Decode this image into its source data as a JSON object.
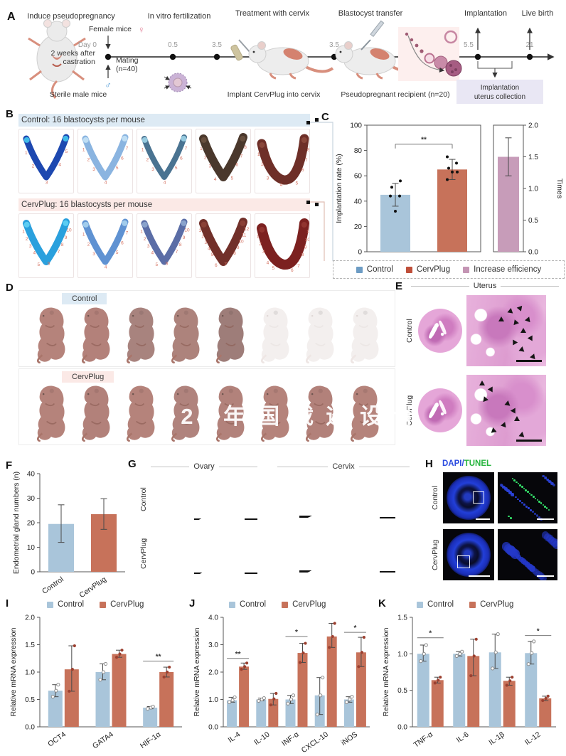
{
  "colors": {
    "control_bar": "#a9c5da",
    "cervplug_bar": "#c7725a",
    "increase_bar": "#c79cb9",
    "legend_control": "#6d9cc4",
    "legend_cervplug": "#bf4f3a",
    "legend_increase": "#c495b4",
    "site_number": "#d4705f",
    "header_blue": "#ddeaf4",
    "header_pink": "#fbe9e6"
  },
  "watermark": "02 年国截遥设计",
  "panels": {
    "A": {
      "label": "A",
      "step1": "Induce pseudopregnancy",
      "step2": "In vitro fertilization",
      "step3": "Treatment with cervix",
      "step4": "Blastocyst transfer",
      "step5": "Implantation",
      "step6": "Live birth",
      "female_mice": "Female mice",
      "female_symbol": "♀",
      "male_symbol": "♂",
      "castration_l1": "2 weeks after",
      "castration_l2": "castration",
      "sterile": "Sterile male mice",
      "day0": "Day 0",
      "mating_l1": "Mating",
      "mating_l2": "(n=40)",
      "t05": "0.5",
      "t35a": "3.5",
      "t35b": "3.5",
      "t55": "5.5",
      "t21": "21",
      "implant": "Implant CervPlug into cervix",
      "recipient": "Pseudopregnant recipient (n=20)",
      "collection_l1": "Implantation",
      "collection_l2": "uterus collection"
    },
    "B": {
      "label": "B",
      "groups": [
        {
          "title": "Control: 16 blastocysts per mouse",
          "header_bg": "#ddeaf4",
          "tiles": [
            {
              "color": "#1d48b0",
              "tip": "#45c8f0",
              "sites": 5,
              "shape": "v",
              "w": 9
            },
            {
              "color": "#8ab4e0",
              "tip": "#c4e2f6",
              "sites": 7,
              "shape": "v",
              "w": 9
            },
            {
              "color": "#4a7391",
              "tip": "#9fd4e8",
              "sites": 7,
              "shape": "v",
              "w": 8
            },
            {
              "color": "#4a382c",
              "tip": "#6a5240",
              "sites": 8,
              "shape": "v",
              "w": 12
            },
            {
              "color": "#6e2f28",
              "tip": "#8c4a3c",
              "sites": 8,
              "shape": "curve",
              "w": 13
            }
          ]
        },
        {
          "title": "CervPlug: 16 blastocysts per mouse",
          "header_bg": "#fbe9e6",
          "tiles": [
            {
              "color": "#2aa0dd",
              "tip": "#62d2f5",
              "sites": 10,
              "shape": "v",
              "w": 10
            },
            {
              "color": "#5f92d2",
              "tip": "#a8d3ee",
              "sites": 7,
              "shape": "v",
              "w": 9
            },
            {
              "color": "#5b6da6",
              "tip": "#8fa8d0",
              "sites": 10,
              "shape": "v",
              "w": 9
            },
            {
              "color": "#72302a",
              "tip": "#8d4438",
              "sites": 12,
              "shape": "v",
              "w": 12
            },
            {
              "color": "#7c2120",
              "tip": "#933631",
              "sites": 11,
              "shape": "curve",
              "w": 14
            }
          ]
        }
      ]
    },
    "C": {
      "label": "C",
      "legend": [
        {
          "label": "Control",
          "color": "#6d9cc4"
        },
        {
          "label": "CervPlug",
          "color": "#bf4f3a"
        },
        {
          "label": "Increase efficiency",
          "color": "#c495b4"
        }
      ]
    },
    "D": {
      "label": "D",
      "rows": [
        {
          "chip": "Control",
          "chip_bg": "#ddeaf4",
          "pups": [
            "#b5837b",
            "#b3817a",
            "#a8837e",
            "#ad837c",
            "#9e7d79",
            "#f3efee",
            "#f3efee",
            "#f3efee"
          ]
        },
        {
          "chip": "CervPlug",
          "chip_bg": "#fbe9e6",
          "pups": [
            "#b5837b",
            "#b2817a",
            "#b5837b",
            "#b0837d",
            "#b2827b",
            "#b5837b",
            "#b2817a",
            "#b5837b"
          ]
        }
      ]
    },
    "E": {
      "label": "E",
      "title": "Uterus",
      "rows": [
        "Control",
        "CervPlug"
      ]
    },
    "F": {
      "label": "F"
    },
    "G": {
      "label": "G",
      "ovary": "Ovary",
      "cervix": "Cervix",
      "rows": [
        "Control",
        "CervPlug"
      ]
    },
    "H": {
      "label": "H",
      "dapi": "DAPI",
      "slash": "/",
      "tunel": "TUNEL",
      "dapi_color": "#2b4be0",
      "tunel_color": "#27b53f",
      "rows": [
        "Control",
        "CervPlug"
      ]
    },
    "I": {
      "label": "I",
      "legend": [
        {
          "label": "Control",
          "color": "#a9c5da"
        },
        {
          "label": "CervPlug",
          "color": "#c7725a"
        }
      ]
    },
    "J": {
      "label": "J",
      "legend": [
        {
          "label": "Control",
          "color": "#a9c5da"
        },
        {
          "label": "CervPlug",
          "color": "#c7725a"
        }
      ]
    },
    "K": {
      "label": "K",
      "legend": [
        {
          "label": "Control",
          "color": "#a9c5da"
        },
        {
          "label": "CervPlug",
          "color": "#c7725a"
        }
      ]
    }
  },
  "chart_data": [
    {
      "id": "C1",
      "type": "bar",
      "ylabel": "Implantation rate (%)",
      "ylim": [
        0,
        100
      ],
      "yticks": [
        0,
        20,
        40,
        60,
        80,
        100
      ],
      "tick_dec": 0,
      "frame": "box",
      "show_x": false,
      "categories": [
        "Control",
        "CervPlug"
      ],
      "series": [
        {
          "name": "single",
          "colors": [
            "#a9c5da",
            "#c7725a"
          ],
          "values": [
            45,
            65
          ],
          "err_low": [
            36,
            57
          ],
          "err_high": [
            54,
            73
          ]
        }
      ],
      "points": [
        [
          44,
          44,
          51,
          56,
          32
        ],
        [
          75,
          70,
          66,
          63,
          63,
          57
        ]
      ],
      "sig": [
        {
          "cat": 0,
          "cat2": 1,
          "label": "**",
          "y": 85,
          "bracket": true
        }
      ]
    },
    {
      "id": "C2",
      "type": "bar",
      "ylabel": "Times",
      "axis": "right",
      "ylim": [
        0,
        2
      ],
      "yticks": [
        0,
        0.5,
        1,
        1.5,
        2
      ],
      "tick_dec": 1,
      "frame": "box",
      "show_x": false,
      "categories": [
        "Increase efficiency"
      ],
      "series": [
        {
          "name": "single",
          "colors": [
            "#c79cb9"
          ],
          "values": [
            1.5
          ],
          "err_low": [
            1.2
          ],
          "err_high": [
            1.8
          ]
        }
      ]
    },
    {
      "id": "F1",
      "type": "bar",
      "ylabel": "Endometrial gland numbers (n)",
      "ylim": [
        0,
        40
      ],
      "yticks": [
        0,
        10,
        20,
        30,
        40
      ],
      "tick_dec": 0,
      "frame": "lb",
      "show_x": true,
      "categories": [
        "Control",
        "CervPlug"
      ],
      "series": [
        {
          "name": "single",
          "colors": [
            "#a9c5da",
            "#c7725a"
          ],
          "values": [
            19.5,
            23.5
          ],
          "err_low": [
            12,
            17.3
          ],
          "err_high": [
            27.3,
            29.8
          ]
        }
      ]
    },
    {
      "id": "I1",
      "type": "bar",
      "ylabel": "Relative mRNA expression",
      "ylim": [
        0,
        2
      ],
      "yticks": [
        0,
        0.5,
        1,
        1.5,
        2
      ],
      "tick_dec": 1,
      "frame": "lb",
      "show_x": true,
      "dots": "auto",
      "categories": [
        "OCT4",
        "GATA4",
        "HIF-1α"
      ],
      "series": [
        {
          "name": "Control",
          "color": "#a9c5da",
          "values": [
            0.66,
            1.0,
            0.35
          ],
          "err_low": [
            0.55,
            0.86,
            0.33
          ],
          "err_high": [
            0.77,
            1.15,
            0.37
          ]
        },
        {
          "name": "CervPlug",
          "color": "#c7725a",
          "values": [
            1.05,
            1.33,
            1.0
          ],
          "err_low": [
            0.65,
            1.27,
            0.91
          ],
          "err_high": [
            1.48,
            1.4,
            1.09
          ]
        }
      ],
      "sig": [
        {
          "cat": 2,
          "label": "**",
          "y": 1.2
        }
      ]
    },
    {
      "id": "J1",
      "type": "bar",
      "ylabel": "Relative mRNA expression",
      "ylim": [
        0,
        4
      ],
      "yticks": [
        0,
        1,
        2,
        3,
        4
      ],
      "tick_dec": 1,
      "frame": "lb",
      "show_x": true,
      "dots": "auto",
      "categories": [
        "IL-4",
        "IL-10",
        "INF-α",
        "CXCL-10",
        "iNOS"
      ],
      "series": [
        {
          "name": "Control",
          "color": "#a9c5da",
          "values": [
            0.97,
            1.0,
            1.0,
            1.15,
            1.0
          ],
          "err_low": [
            0.9,
            0.95,
            0.85,
            0.45,
            0.9
          ],
          "err_high": [
            1.08,
            1.05,
            1.15,
            1.8,
            1.1
          ]
        },
        {
          "name": "CervPlug",
          "color": "#c7725a",
          "values": [
            2.2,
            1.02,
            2.7,
            3.3,
            2.72
          ],
          "err_low": [
            2.1,
            0.8,
            2.35,
            2.9,
            2.2
          ],
          "err_high": [
            2.33,
            1.22,
            3.05,
            3.78,
            3.27
          ]
        }
      ],
      "sig": [
        {
          "cat": 0,
          "label": "**",
          "y": 2.5
        },
        {
          "cat": 2,
          "label": "*",
          "y": 3.3
        },
        {
          "cat": 4,
          "label": "*",
          "y": 3.45
        }
      ]
    },
    {
      "id": "K1",
      "type": "bar",
      "ylabel": "Relative mRNA expression",
      "ylim": [
        0,
        1.5
      ],
      "yticks": [
        0,
        0.5,
        1,
        1.5
      ],
      "tick_dec": 1,
      "frame": "lb",
      "show_x": true,
      "dots": "auto",
      "categories": [
        "TNF-α",
        "IL-6",
        "IL-1β",
        "IL-12"
      ],
      "series": [
        {
          "name": "Control",
          "color": "#a9c5da",
          "values": [
            1.0,
            1.0,
            1.02,
            1.01
          ],
          "err_low": [
            0.9,
            0.97,
            0.8,
            0.86
          ],
          "err_high": [
            1.12,
            1.03,
            1.27,
            1.17
          ]
        },
        {
          "name": "CervPlug",
          "color": "#c7725a",
          "values": [
            0.64,
            0.97,
            0.63,
            0.39
          ],
          "err_low": [
            0.6,
            0.7,
            0.57,
            0.36
          ],
          "err_high": [
            0.68,
            1.2,
            0.68,
            0.42
          ]
        }
      ],
      "sig": [
        {
          "cat": 0,
          "label": "*",
          "y": 1.22
        },
        {
          "cat": 3,
          "label": "*",
          "y": 1.25
        }
      ]
    }
  ]
}
